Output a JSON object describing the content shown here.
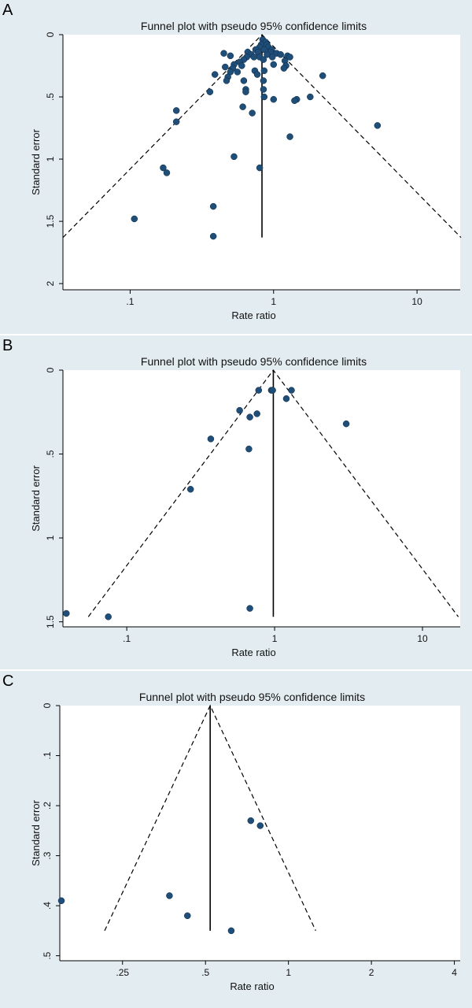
{
  "colors": {
    "marker": "#1f4e79",
    "background": "#e3ecf0",
    "plot": "#ffffff"
  },
  "chart_data": [
    {
      "panel": "A",
      "type": "scatter",
      "title": "Funnel plot with pseudo 95% confidence limits",
      "xlabel": "Rate ratio",
      "ylabel": "Standard error",
      "x_scale": "log",
      "y_reversed": true,
      "xlim": [
        0.034,
        20
      ],
      "ylim": [
        0,
        2.05
      ],
      "x_ticks": [
        0.1,
        1,
        10
      ],
      "x_tick_labels": [
        ".1",
        "1",
        "10"
      ],
      "y_ticks": [
        0,
        0.5,
        1,
        1.5,
        2
      ],
      "y_tick_labels": [
        "0",
        ".5",
        "1",
        "1.5",
        "2"
      ],
      "pooled_estimate": 0.83,
      "funnel_max_se": 1.63,
      "points": [
        {
          "x": 0.84,
          "y": 0.04
        },
        {
          "x": 0.88,
          "y": 0.06
        },
        {
          "x": 0.82,
          "y": 0.08
        },
        {
          "x": 0.9,
          "y": 0.08
        },
        {
          "x": 0.8,
          "y": 0.1
        },
        {
          "x": 0.92,
          "y": 0.1
        },
        {
          "x": 0.75,
          "y": 0.12
        },
        {
          "x": 0.86,
          "y": 0.12
        },
        {
          "x": 0.97,
          "y": 0.12
        },
        {
          "x": 0.66,
          "y": 0.14
        },
        {
          "x": 0.78,
          "y": 0.14
        },
        {
          "x": 0.95,
          "y": 0.14
        },
        {
          "x": 1.05,
          "y": 0.15
        },
        {
          "x": 0.45,
          "y": 0.15
        },
        {
          "x": 0.7,
          "y": 0.16
        },
        {
          "x": 0.9,
          "y": 0.16
        },
        {
          "x": 1.12,
          "y": 0.16
        },
        {
          "x": 1.25,
          "y": 0.17
        },
        {
          "x": 0.5,
          "y": 0.17
        },
        {
          "x": 0.65,
          "y": 0.18
        },
        {
          "x": 0.73,
          "y": 0.18
        },
        {
          "x": 0.8,
          "y": 0.18
        },
        {
          "x": 0.98,
          "y": 0.18
        },
        {
          "x": 1.3,
          "y": 0.18
        },
        {
          "x": 0.62,
          "y": 0.2
        },
        {
          "x": 0.85,
          "y": 0.2
        },
        {
          "x": 1.2,
          "y": 0.21
        },
        {
          "x": 0.58,
          "y": 0.22
        },
        {
          "x": 1.0,
          "y": 0.24
        },
        {
          "x": 0.53,
          "y": 0.24
        },
        {
          "x": 0.6,
          "y": 0.25
        },
        {
          "x": 1.22,
          "y": 0.25
        },
        {
          "x": 0.46,
          "y": 0.26
        },
        {
          "x": 0.52,
          "y": 0.27
        },
        {
          "x": 1.18,
          "y": 0.27
        },
        {
          "x": 0.74,
          "y": 0.29
        },
        {
          "x": 0.86,
          "y": 0.29
        },
        {
          "x": 0.5,
          "y": 0.3
        },
        {
          "x": 0.56,
          "y": 0.3
        },
        {
          "x": 0.77,
          "y": 0.32
        },
        {
          "x": 0.39,
          "y": 0.32
        },
        {
          "x": 0.48,
          "y": 0.34
        },
        {
          "x": 2.2,
          "y": 0.33
        },
        {
          "x": 0.47,
          "y": 0.37
        },
        {
          "x": 0.62,
          "y": 0.37
        },
        {
          "x": 0.85,
          "y": 0.37
        },
        {
          "x": 0.64,
          "y": 0.44
        },
        {
          "x": 0.85,
          "y": 0.44
        },
        {
          "x": 0.64,
          "y": 0.46
        },
        {
          "x": 0.36,
          "y": 0.46
        },
        {
          "x": 0.86,
          "y": 0.5
        },
        {
          "x": 1.8,
          "y": 0.5
        },
        {
          "x": 1.45,
          "y": 0.52
        },
        {
          "x": 1.0,
          "y": 0.52
        },
        {
          "x": 1.4,
          "y": 0.53
        },
        {
          "x": 0.61,
          "y": 0.58
        },
        {
          "x": 0.71,
          "y": 0.63
        },
        {
          "x": 0.21,
          "y": 0.61
        },
        {
          "x": 0.21,
          "y": 0.7
        },
        {
          "x": 1.3,
          "y": 0.82
        },
        {
          "x": 5.3,
          "y": 0.73
        },
        {
          "x": 0.53,
          "y": 0.98
        },
        {
          "x": 0.17,
          "y": 1.07
        },
        {
          "x": 0.8,
          "y": 1.07
        },
        {
          "x": 0.18,
          "y": 1.11
        },
        {
          "x": 0.38,
          "y": 1.38
        },
        {
          "x": 0.107,
          "y": 1.48
        },
        {
          "x": 0.38,
          "y": 1.62
        }
      ]
    },
    {
      "panel": "B",
      "type": "scatter",
      "title": "Funnel plot with pseudo 95% confidence limits",
      "xlabel": "Rate ratio",
      "ylabel": "Standard error",
      "x_scale": "log",
      "y_reversed": true,
      "xlim": [
        0.037,
        18
      ],
      "ylim": [
        0,
        1.53
      ],
      "x_ticks": [
        0.1,
        1,
        10
      ],
      "x_tick_labels": [
        ".1",
        "1",
        "10"
      ],
      "y_ticks": [
        0,
        0.5,
        1,
        1.5
      ],
      "y_tick_labels": [
        "0",
        ".5",
        "1",
        "1.5"
      ],
      "pooled_estimate": 0.98,
      "funnel_max_se": 1.47,
      "points": [
        {
          "x": 0.78,
          "y": 0.12
        },
        {
          "x": 0.95,
          "y": 0.12
        },
        {
          "x": 0.97,
          "y": 0.12
        },
        {
          "x": 1.3,
          "y": 0.12
        },
        {
          "x": 1.2,
          "y": 0.17
        },
        {
          "x": 0.58,
          "y": 0.24
        },
        {
          "x": 0.76,
          "y": 0.26
        },
        {
          "x": 0.68,
          "y": 0.28
        },
        {
          "x": 3.05,
          "y": 0.32
        },
        {
          "x": 0.37,
          "y": 0.41
        },
        {
          "x": 0.67,
          "y": 0.47
        },
        {
          "x": 0.27,
          "y": 0.71
        },
        {
          "x": 0.68,
          "y": 1.42
        },
        {
          "x": 0.039,
          "y": 1.45
        },
        {
          "x": 0.075,
          "y": 1.47
        }
      ]
    },
    {
      "panel": "C",
      "type": "scatter",
      "title": "Funnel plot with pseudo 95% confidence limits",
      "xlabel": "Rate ratio",
      "ylabel": "Standard error",
      "x_scale": "log",
      "y_reversed": true,
      "xlim": [
        0.148,
        4.2
      ],
      "ylim": [
        0,
        0.51
      ],
      "x_ticks": [
        0.25,
        0.5,
        1,
        2,
        4
      ],
      "x_tick_labels": [
        ".25",
        ".5",
        "1",
        "2",
        "4"
      ],
      "y_ticks": [
        0,
        0.1,
        0.2,
        0.3,
        0.4,
        0.5
      ],
      "y_tick_labels": [
        "0",
        ".1",
        ".2",
        ".3",
        ".4",
        ".5"
      ],
      "pooled_estimate": 0.52,
      "funnel_max_se": 0.45,
      "points": [
        {
          "x": 0.73,
          "y": 0.23
        },
        {
          "x": 0.79,
          "y": 0.24
        },
        {
          "x": 0.15,
          "y": 0.39
        },
        {
          "x": 0.37,
          "y": 0.38
        },
        {
          "x": 0.43,
          "y": 0.42
        },
        {
          "x": 0.62,
          "y": 0.45
        }
      ]
    }
  ]
}
